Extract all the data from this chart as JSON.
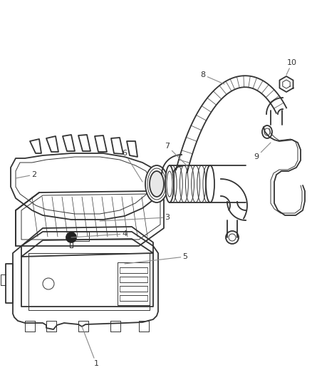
{
  "bg_color": "#ffffff",
  "line_color": "#333333",
  "leader_color": "#888888",
  "figsize": [
    4.38,
    5.33
  ],
  "dpi": 100,
  "lw_main": 1.3,
  "lw_thin": 0.7,
  "label_fontsize": 8
}
